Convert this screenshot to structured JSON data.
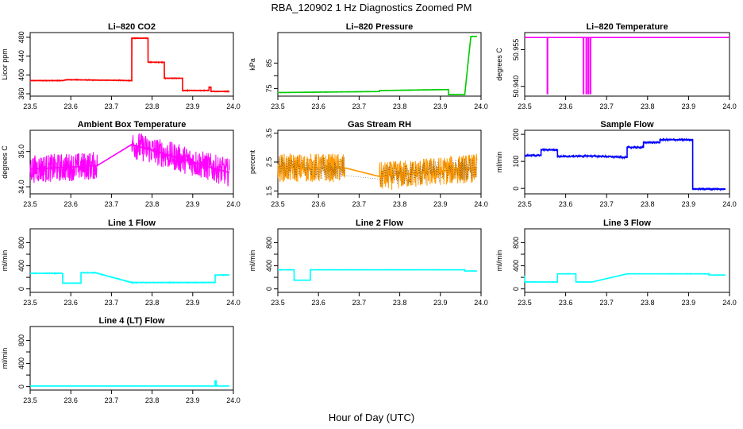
{
  "title": "RBA_120902  1 Hz Diagnostics Zoomed PM",
  "xlabel": "Hour of Day (UTC)",
  "chart_data": [
    {
      "type": "line",
      "title": "Li–820 CO2",
      "ylabel": "Licor ppm",
      "color": "#ff0000",
      "xlim": [
        23.5,
        24.0
      ],
      "ylim": [
        355,
        490
      ],
      "yticks": [
        360,
        400,
        440,
        480
      ],
      "xticks": [
        23.5,
        23.6,
        23.7,
        23.8,
        23.9,
        24.0
      ],
      "noise": 1,
      "x": [
        23.5,
        23.58,
        23.59,
        23.75,
        23.75,
        23.79,
        23.79,
        23.83,
        23.83,
        23.875,
        23.875,
        23.94,
        23.94,
        23.945,
        23.945,
        23.99
      ],
      "y": [
        388,
        388,
        390,
        388,
        478,
        478,
        427,
        427,
        393,
        393,
        367,
        367,
        374,
        374,
        365,
        365
      ]
    },
    {
      "type": "line",
      "title": "Li–820 Pressure",
      "ylabel": "kPa",
      "color": "#00cc00",
      "xlim": [
        23.5,
        24.0
      ],
      "ylim": [
        72,
        97
      ],
      "yticks": [
        75,
        80,
        85
      ],
      "ytick_labels": [
        "75",
        "",
        "85"
      ],
      "xticks": [
        23.5,
        23.6,
        23.7,
        23.8,
        23.9,
        24.0
      ],
      "noise": 0.1,
      "x": [
        23.5,
        23.75,
        23.75,
        23.92,
        23.92,
        23.96,
        23.97,
        23.975,
        23.99
      ],
      "y": [
        73.4,
        73.8,
        74.2,
        74.6,
        72.6,
        72.6,
        88,
        95.5,
        95.5
      ]
    },
    {
      "type": "line",
      "title": "Li–820 Temperature",
      "ylabel": "degrees C",
      "color": "#ff00ff",
      "xlim": [
        23.5,
        24.0
      ],
      "ylim": [
        50.936,
        50.962
      ],
      "yticks": [
        50.94,
        50.955
      ],
      "ytick_labels": [
        "50.940",
        "50.955"
      ],
      "xticks": [
        23.5,
        23.6,
        23.7,
        23.8,
        23.9,
        24.0
      ],
      "noise": 0,
      "x": [
        23.5,
        23.555,
        23.555,
        23.556,
        23.556,
        23.643,
        23.643,
        23.644,
        23.644,
        23.65,
        23.65,
        23.651,
        23.651,
        23.655,
        23.655,
        23.656,
        23.656,
        23.66,
        23.66,
        23.661,
        23.661,
        24.0
      ],
      "y": [
        50.96,
        50.96,
        50.937,
        50.937,
        50.96,
        50.96,
        50.937,
        50.937,
        50.96,
        50.96,
        50.937,
        50.937,
        50.96,
        50.96,
        50.937,
        50.937,
        50.96,
        50.96,
        50.937,
        50.937,
        50.96,
        50.96
      ]
    },
    {
      "type": "line",
      "title": "Ambient Box Temperature",
      "ylabel": "degrees C",
      "color": "#ff00ff",
      "xlim": [
        23.5,
        24.0
      ],
      "ylim": [
        33.8,
        35.6
      ],
      "yticks": [
        34.0,
        35.0
      ],
      "ytick_labels": [
        "34.0",
        "35.0"
      ],
      "xticks": [
        23.5,
        23.6,
        23.7,
        23.8,
        23.9,
        24.0
      ],
      "noise": 0.4,
      "x": [
        23.5,
        23.665,
        23.75,
        23.99
      ],
      "y": [
        34.5,
        34.6,
        35.2,
        34.4
      ]
    },
    {
      "type": "line",
      "title": "Gas Stream RH",
      "ylabel": "percent",
      "color": "#ff9900",
      "color2": "#333333",
      "xlim": [
        23.5,
        24.0
      ],
      "ylim": [
        1.4,
        3.6
      ],
      "yticks": [
        1.5,
        2.5,
        3.5
      ],
      "ytick_labels": [
        "1.5",
        "2.5",
        "3.5"
      ],
      "xticks": [
        23.5,
        23.6,
        23.7,
        23.8,
        23.9,
        24.0
      ],
      "noise": 0.5,
      "x": [
        23.5,
        23.665,
        23.75,
        23.99
      ],
      "y": [
        2.3,
        2.3,
        2.0,
        2.3
      ]
    },
    {
      "type": "line",
      "title": "Sample Flow",
      "ylabel": "ml/min",
      "color": "#0000ff",
      "xlim": [
        23.5,
        24.0
      ],
      "ylim": [
        -20,
        215
      ],
      "yticks": [
        0,
        100,
        200
      ],
      "xticks": [
        23.5,
        23.6,
        23.7,
        23.8,
        23.9,
        24.0
      ],
      "noise": 4,
      "x": [
        23.5,
        23.54,
        23.54,
        23.58,
        23.58,
        23.66,
        23.75,
        23.75,
        23.79,
        23.79,
        23.83,
        23.83,
        23.91,
        23.91,
        23.99
      ],
      "y": [
        122,
        122,
        143,
        143,
        118,
        120,
        115,
        152,
        152,
        170,
        170,
        180,
        180,
        -2,
        -2
      ]
    },
    {
      "type": "line",
      "title": "Line 1 Flow",
      "ylabel": "ml/min",
      "color": "#00ffff",
      "xlim": [
        23.5,
        24.0
      ],
      "ylim": [
        -60,
        1040
      ],
      "yticks": [
        0,
        200,
        400,
        600,
        800
      ],
      "ytick_labels": [
        "0",
        "",
        "400",
        "",
        "800"
      ],
      "xticks": [
        23.5,
        23.6,
        23.7,
        23.8,
        23.9,
        24.0
      ],
      "noise": 8,
      "x": [
        23.5,
        23.58,
        23.58,
        23.625,
        23.625,
        23.66,
        23.75,
        23.955,
        23.955,
        23.99
      ],
      "y": [
        270,
        270,
        100,
        100,
        280,
        280,
        110,
        110,
        240,
        240
      ]
    },
    {
      "type": "line",
      "title": "Line 2 Flow",
      "ylabel": "ml/min",
      "color": "#00ffff",
      "xlim": [
        23.5,
        24.0
      ],
      "ylim": [
        -60,
        1040
      ],
      "yticks": [
        0,
        200,
        400,
        600,
        800
      ],
      "ytick_labels": [
        "0",
        "",
        "400",
        "",
        "800"
      ],
      "xticks": [
        23.5,
        23.6,
        23.7,
        23.8,
        23.9,
        24.0
      ],
      "noise": 3,
      "x": [
        23.5,
        23.54,
        23.54,
        23.58,
        23.58,
        23.75,
        23.75,
        23.96,
        23.96,
        23.99
      ],
      "y": [
        330,
        330,
        150,
        150,
        330,
        330,
        330,
        330,
        310,
        310
      ]
    },
    {
      "type": "line",
      "title": "Line 3 Flow",
      "ylabel": "ml/min",
      "color": "#00ffff",
      "xlim": [
        23.5,
        24.0
      ],
      "ylim": [
        -60,
        1040
      ],
      "yticks": [
        0,
        200,
        400,
        600,
        800
      ],
      "ytick_labels": [
        "0",
        "",
        "400",
        "",
        "800"
      ],
      "xticks": [
        23.5,
        23.6,
        23.7,
        23.8,
        23.9,
        24.0
      ],
      "noise": 5,
      "x": [
        23.5,
        23.5,
        23.54,
        23.54,
        23.58,
        23.58,
        23.625,
        23.625,
        23.665,
        23.75,
        23.95,
        23.95,
        23.99
      ],
      "y": [
        230,
        120,
        120,
        120,
        120,
        260,
        260,
        120,
        120,
        260,
        260,
        240,
        240
      ]
    },
    {
      "type": "line",
      "title": "Line 4 (LT) Flow",
      "ylabel": "ml/min",
      "color": "#00ffff",
      "xlim": [
        23.5,
        24.0
      ],
      "ylim": [
        -60,
        1040
      ],
      "yticks": [
        0,
        200,
        400,
        600,
        800
      ],
      "ytick_labels": [
        "0",
        "",
        "400",
        "",
        "800"
      ],
      "xticks": [
        23.5,
        23.6,
        23.7,
        23.8,
        23.9,
        24.0
      ],
      "noise": 2,
      "x": [
        23.5,
        23.955,
        23.955,
        23.958,
        23.958,
        23.99
      ],
      "y": [
        10,
        10,
        100,
        100,
        10,
        10
      ]
    }
  ]
}
